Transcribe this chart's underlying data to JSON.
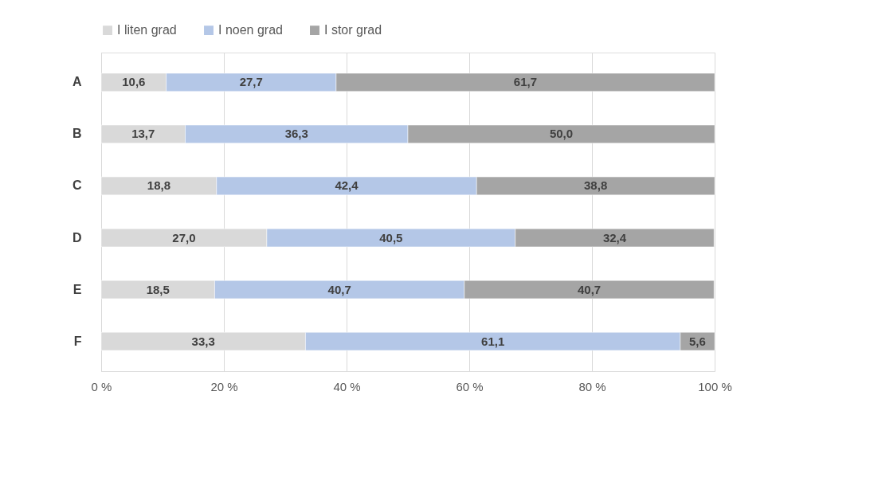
{
  "chart_data": {
    "type": "bar",
    "orientation": "horizontal",
    "stacked": true,
    "categories": [
      "A",
      "B",
      "C",
      "D",
      "E",
      "F"
    ],
    "series": [
      {
        "name": "I liten grad",
        "color": "#d9d9d9",
        "values": [
          10.6,
          13.7,
          18.8,
          27.0,
          18.5,
          33.3
        ],
        "value_labels": [
          "10,6",
          "13,7",
          "18,8",
          "27,0",
          "18,5",
          "33,3"
        ]
      },
      {
        "name": "I noen grad",
        "color": "#b4c7e7",
        "values": [
          27.7,
          36.3,
          42.4,
          40.5,
          40.7,
          61.1
        ],
        "value_labels": [
          "27,7",
          "36,3",
          "42,4",
          "40,5",
          "40,7",
          "61,1"
        ]
      },
      {
        "name": "I stor grad",
        "color": "#a5a5a5",
        "values": [
          61.7,
          50.0,
          38.8,
          32.4,
          40.7,
          5.6
        ],
        "value_labels": [
          "61,7",
          "50,0",
          "38,8",
          "32,4",
          "40,7",
          "5,6"
        ]
      }
    ],
    "xlim": [
      0,
      100
    ],
    "xticks": [
      {
        "value": 0,
        "label": "0 %"
      },
      {
        "value": 20,
        "label": "20 %"
      },
      {
        "value": 40,
        "label": "40 %"
      },
      {
        "value": 60,
        "label": "60 %"
      },
      {
        "value": 80,
        "label": "80 %"
      },
      {
        "value": 100,
        "label": "100 %"
      }
    ],
    "grid": "x",
    "legend": "top"
  }
}
